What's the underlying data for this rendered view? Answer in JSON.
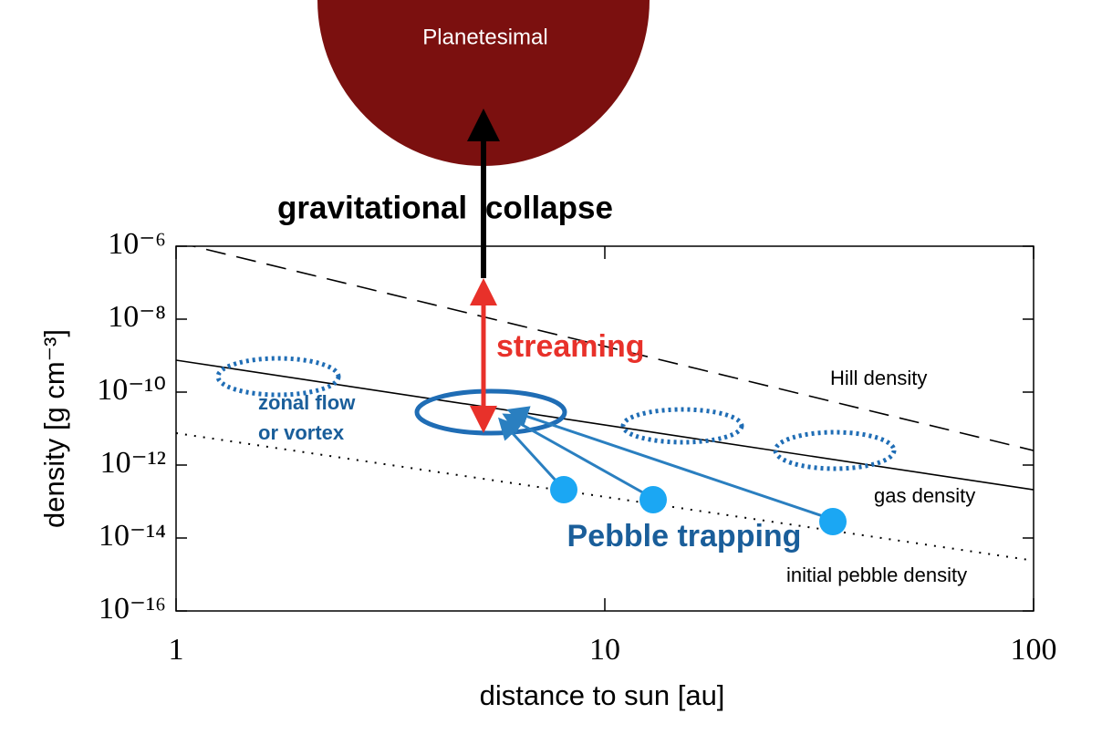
{
  "chart_data": {
    "type": "line",
    "xlabel": "distance to sun [au]",
    "ylabel": "density [g cm⁻³]",
    "xscale": "log",
    "yscale": "log",
    "x": [
      1,
      100
    ],
    "xlim": [
      1,
      100
    ],
    "ylim": [
      1e-16,
      1e-06
    ],
    "xticks": [
      1,
      10,
      100
    ],
    "yticks": [
      {
        "value": 1e-06,
        "label": "10⁻⁶"
      },
      {
        "value": 1e-08,
        "label": "10⁻⁸"
      },
      {
        "value": 1e-10,
        "label": "10⁻¹⁰"
      },
      {
        "value": 1e-12,
        "label": "10⁻¹²"
      },
      {
        "value": 1e-14,
        "label": "10⁻¹⁴"
      },
      {
        "value": 1e-16,
        "label": "10⁻¹⁶"
      }
    ],
    "series": [
      {
        "name": "Hill density",
        "color": "#000000",
        "dash": "dashed",
        "values": [
          1.3e-06,
          2.5e-12
        ]
      },
      {
        "name": "gas density",
        "color": "#000000",
        "dash": "solid",
        "values": [
          7.5e-10,
          2.1e-13
        ]
      },
      {
        "name": "initial pebble density",
        "color": "#000000",
        "dash": "dotted",
        "values": [
          7.5e-12,
          2.4e-15
        ]
      }
    ],
    "annotations": [
      "Planetesimal",
      "gravitational collapse",
      "streaming",
      "zonal flow",
      "or vortex",
      "Pebble trapping"
    ]
  }
}
